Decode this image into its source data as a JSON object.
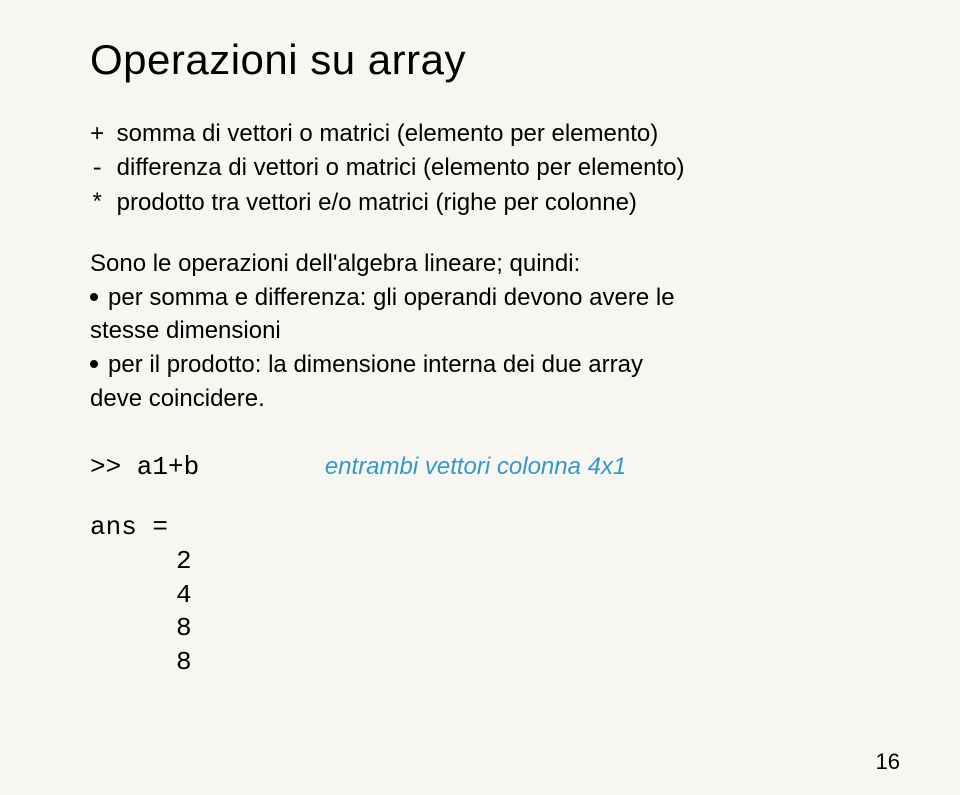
{
  "slide": {
    "title": "Operazioni su array",
    "operators": [
      {
        "sym": "+",
        "text": "somma di vettori o matrici (elemento per elemento)"
      },
      {
        "sym": "-",
        "text": "differenza di vettori o matrici (elemento per elemento)"
      },
      {
        "sym": "*",
        "text": "prodotto tra vettori e/o matrici (righe per colonne)"
      }
    ],
    "desc_intro": "Sono le operazioni dell'algebra lineare; quindi:",
    "bullets": [
      {
        "line1": "per somma e differenza: gli operandi devono avere le",
        "line2": "stesse dimensioni"
      },
      {
        "line1": "per il prodotto: la dimensione interna dei due array",
        "line2": "deve coincidere."
      }
    ],
    "code": {
      "prompt": ">> a1+b",
      "comment": "entrambi vettori colonna 4x1",
      "ans_label": "ans =",
      "values": [
        "2",
        "4",
        "8",
        "8"
      ]
    },
    "page_number": "16"
  },
  "style": {
    "background_color": "#f8f6f0",
    "text_color": "#000000",
    "comment_color": "#3399cc",
    "title_fontsize": 42,
    "body_fontsize": 24,
    "code_fontsize": 26
  }
}
